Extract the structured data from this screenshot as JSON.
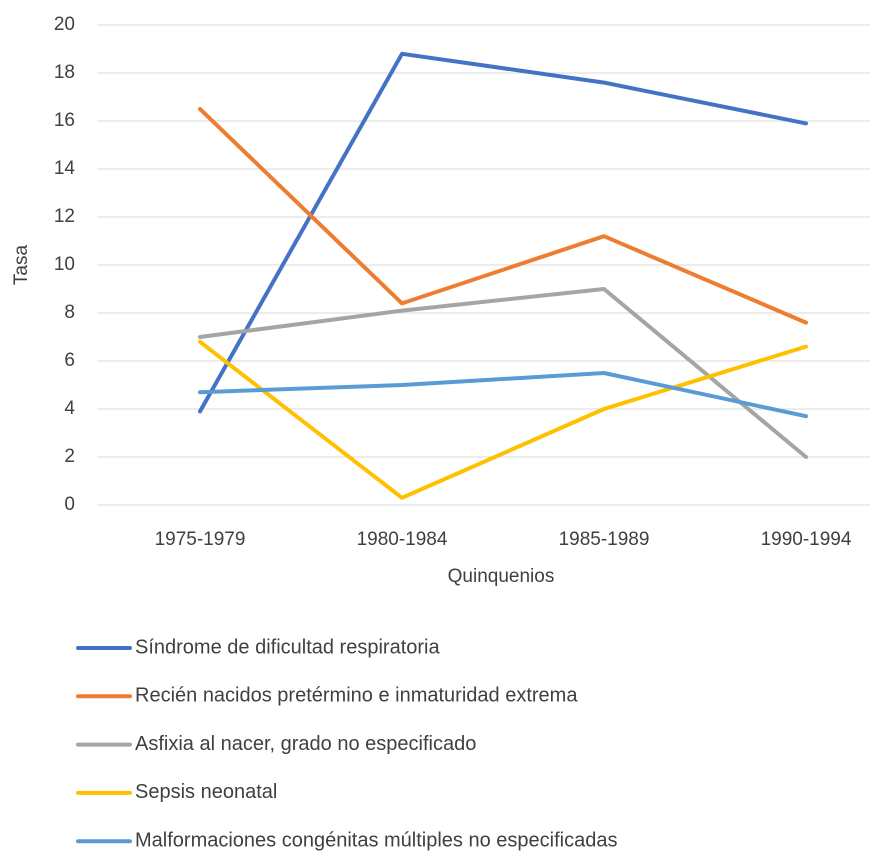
{
  "chart_data": {
    "type": "line",
    "x_label": "Quinquenios",
    "y_label": "Tasa",
    "categories": [
      "1975-1979",
      "1980-1984",
      "1985-1989",
      "1990-1994"
    ],
    "series": [
      {
        "name": "Síndrome de dificultad respiratoria",
        "color": "#4472c4",
        "values": [
          3.9,
          18.8,
          17.6,
          15.9
        ]
      },
      {
        "name": "Recién nacidos pretérmino e inmaturidad extrema",
        "color": "#ed7d31",
        "values": [
          16.5,
          8.4,
          11.2,
          7.6
        ]
      },
      {
        "name": "Asfixia al nacer, grado no especificado",
        "color": "#a5a5a5",
        "values": [
          7.0,
          8.1,
          9.0,
          2.0
        ]
      },
      {
        "name": "Sepsis neonatal",
        "color": "#ffc000",
        "values": [
          6.8,
          0.3,
          4.0,
          6.6
        ]
      },
      {
        "name": "Malformaciones congénitas múltiples no especificadas",
        "color": "#5b9bd5",
        "values": [
          4.7,
          5.0,
          5.5,
          3.7
        ]
      }
    ],
    "ylim": [
      0,
      20
    ],
    "yticks": [
      0,
      2,
      4,
      6,
      8,
      10,
      12,
      14,
      16,
      18,
      20
    ],
    "grid": true,
    "legend": "bottom"
  }
}
